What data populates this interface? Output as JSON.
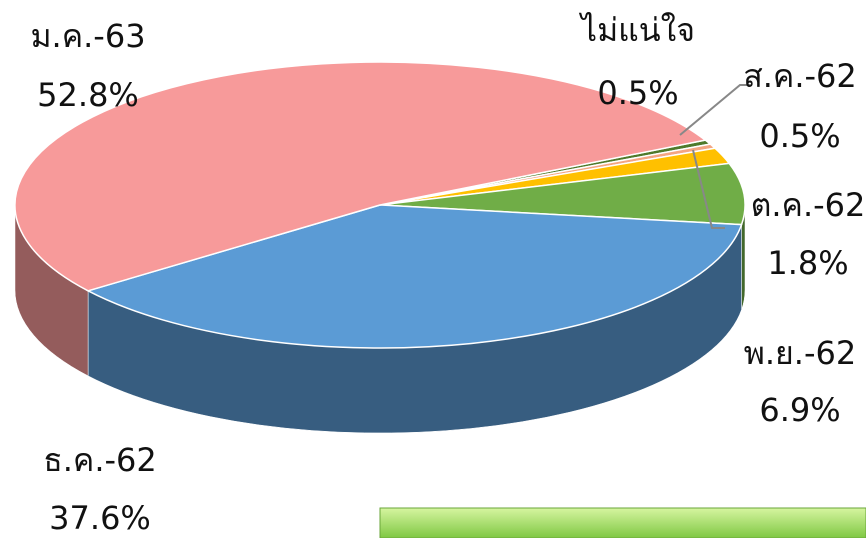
{
  "chart_data": {
    "type": "pie",
    "categories": [
      "ไม่แน่ใจ",
      "ส.ค.-62",
      "ต.ค.-62",
      "พ.ย.-62",
      "ธ.ค.-62",
      "ม.ค.-63"
    ],
    "values": [
      0.5,
      0.5,
      1.8,
      6.9,
      37.6,
      52.8
    ],
    "value_labels": [
      "0.5%",
      "0.5%",
      "1.8%",
      "6.9%",
      "37.6%",
      "52.8%"
    ],
    "colors": [
      "#4f7a2b",
      "#f4a582",
      "#ffc000",
      "#70ad47",
      "#5b9bd5",
      "#f79a9a"
    ]
  }
}
